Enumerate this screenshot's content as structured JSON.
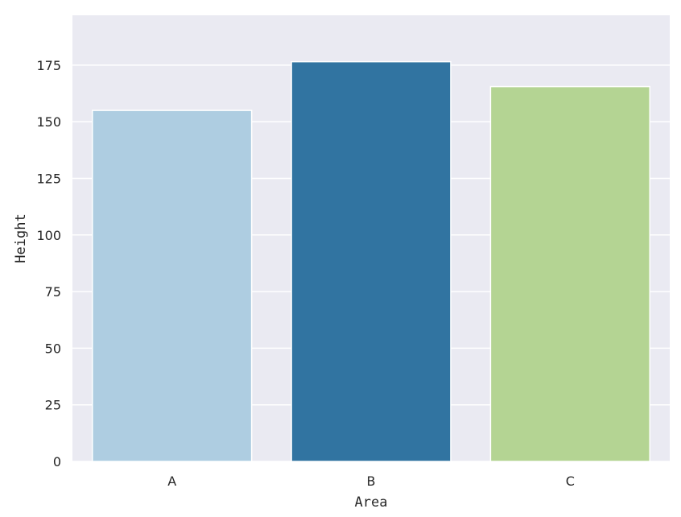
{
  "chart_data": {
    "type": "bar",
    "title": "",
    "xlabel": "Area",
    "ylabel": "Height",
    "categories": [
      "A",
      "B",
      "C"
    ],
    "values": [
      155,
      176.5,
      165.5
    ],
    "colors": [
      "#aecde1",
      "#3174a1",
      "#b4d493"
    ],
    "ylim": [
      0,
      197
    ],
    "yticks": [
      0,
      25,
      50,
      75,
      100,
      125,
      150,
      175
    ],
    "grid": true,
    "background": "#eaeaf2"
  }
}
